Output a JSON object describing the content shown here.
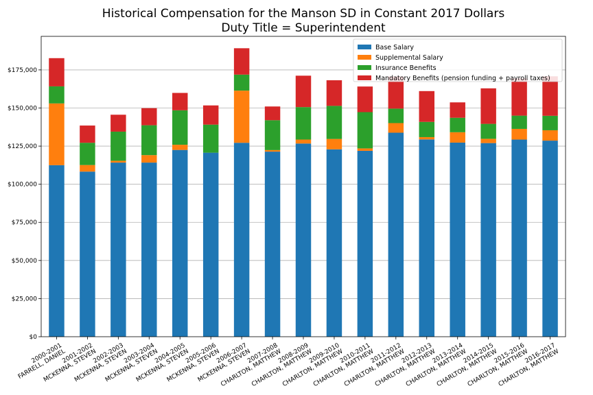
{
  "chart_data": {
    "type": "bar",
    "stacked": true,
    "title": "Historical Compensation for the Manson SD in Constant 2017 Dollars",
    "subtitle": "Duty Title = Superintendent",
    "xlabel": "",
    "ylabel": "",
    "ylim": [
      0,
      197000
    ],
    "yticks": [
      0,
      25000,
      50000,
      75000,
      100000,
      125000,
      150000,
      175000
    ],
    "ytick_labels": [
      "$0",
      "$25,000",
      "$50,000",
      "$75,000",
      "$100,000",
      "$125,000",
      "$150,000",
      "$175,000"
    ],
    "grid": "horizontal",
    "legend_position": "top-right",
    "categories": [
      [
        "2000-2001",
        "FARRELL, DANIEL"
      ],
      [
        "2001-2002",
        "MCKENNA, STEVEN"
      ],
      [
        "2002-2003",
        "MCKENNA, STEVEN"
      ],
      [
        "2003-2004",
        "MCKENNA, STEVEN"
      ],
      [
        "2004-2005",
        "MCKENNA, STEVEN"
      ],
      [
        "2005-2006",
        "MCKENNA, STEVEN"
      ],
      [
        "2006-2007",
        "MCKENNA, STEVEN"
      ],
      [
        "2007-2008",
        "CHARLTON, MATTHEW"
      ],
      [
        "2008-2009",
        "CHARLTON, MATTHEW"
      ],
      [
        "2009-2010",
        "CHARLTON, MATTHEW"
      ],
      [
        "2010-2011",
        "CHARLTON, MATTHEW"
      ],
      [
        "2011-2012",
        "CHARLTON, MATTHEW"
      ],
      [
        "2012-2013",
        "CHARLTON, MATTHEW"
      ],
      [
        "2013-2014",
        "CHARLTON, MATTHEW"
      ],
      [
        "2014-2015",
        "CHARLTON, MATTHEW"
      ],
      [
        "2015-2016",
        "CHARLTON, MATTHEW"
      ],
      [
        "2016-2017",
        "CHARLTON, MATTHEW"
      ]
    ],
    "series": [
      {
        "name": "Base Salary",
        "color": "#1f77b4",
        "values": [
          112500,
          108300,
          114200,
          114200,
          122500,
          120700,
          127200,
          121400,
          126700,
          122900,
          121900,
          133800,
          129400,
          127300,
          127000,
          129300,
          128600
        ]
      },
      {
        "name": "Supplemental Salary",
        "color": "#ff7f0e",
        "values": [
          40500,
          4300,
          1200,
          4900,
          3400,
          0,
          34200,
          1000,
          2600,
          6800,
          1600,
          6300,
          1500,
          6800,
          2800,
          7000,
          6800
        ]
      },
      {
        "name": "Insurance Benefits",
        "color": "#2ca02c",
        "values": [
          11200,
          14600,
          19100,
          19600,
          22600,
          18400,
          10500,
          19600,
          21300,
          21700,
          23800,
          9500,
          10000,
          9500,
          9800,
          8700,
          9500
        ]
      },
      {
        "name": "Mandatory Benefits (pension funding + payroll taxes)",
        "color": "#d62728",
        "values": [
          18500,
          11300,
          11100,
          11200,
          11400,
          12600,
          17300,
          9000,
          20600,
          16800,
          16800,
          21100,
          20200,
          10100,
          23300,
          24400,
          25900
        ]
      }
    ]
  }
}
